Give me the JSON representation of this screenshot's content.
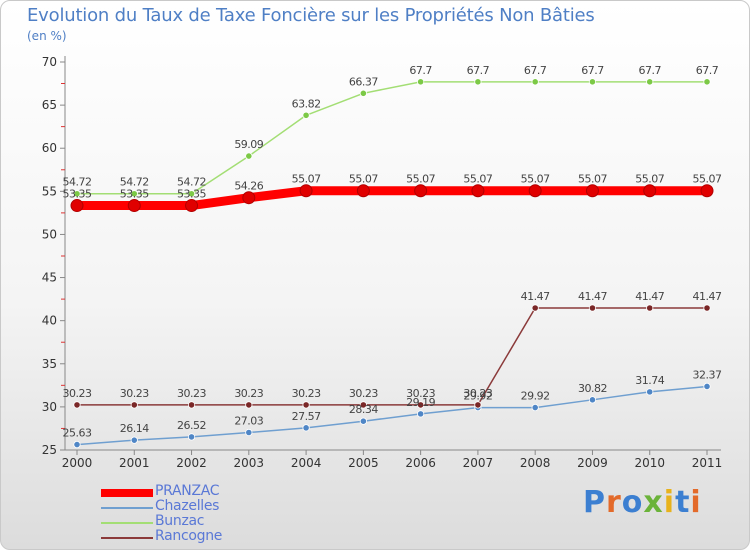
{
  "title": "Evolution du Taux de Taxe Foncière sur les Propriétés Non Bâties",
  "unit": "(en %)",
  "logo": {
    "text": "Proxiti",
    "letter_colors": [
      "#3c7fd1",
      "#e36a2a",
      "#3c7fd1",
      "#6bb33a",
      "#e8b21c",
      "#3c7fd1",
      "#e36a2a"
    ]
  },
  "chart_data": {
    "type": "line",
    "title": "Evolution du Taux de Taxe Foncière sur les Propriétés Non Bâties",
    "ylabel": "(en %)",
    "xlabel": "",
    "x": [
      "2000",
      "2001",
      "2002",
      "2003",
      "2004",
      "2005",
      "2006",
      "2007",
      "2008",
      "2009",
      "2010",
      "2011"
    ],
    "ylim": [
      25,
      70
    ],
    "yticks": [
      25,
      30,
      35,
      40,
      45,
      50,
      55,
      60,
      65,
      70
    ],
    "grid": false,
    "legend_position": "bottom-left",
    "series": [
      {
        "name": "PRANZAC",
        "color": "#ff0000",
        "marker": "#e00000",
        "weight": "bold",
        "values": [
          53.35,
          53.35,
          53.35,
          54.26,
          55.07,
          55.07,
          55.07,
          55.07,
          55.07,
          55.07,
          55.07,
          55.07
        ],
        "labels": [
          "53.35",
          "53.35",
          "53.35",
          "54.26",
          "55.07",
          "55.07",
          "55.07",
          "55.07",
          "55.07",
          "55.07",
          "55.07",
          "55.07"
        ]
      },
      {
        "name": "Chazelles",
        "color": "#6f9fd0",
        "marker": "#4f86c6",
        "weight": "thin",
        "values": [
          25.63,
          26.14,
          26.52,
          27.03,
          27.57,
          28.34,
          29.19,
          29.92,
          29.92,
          30.82,
          31.74,
          32.37
        ],
        "labels": [
          "25.63",
          "26.14",
          "26.52",
          "27.03",
          "27.57",
          "28.34",
          "29.19",
          "29.92",
          "29.92",
          "30.82",
          "31.74",
          "32.37"
        ]
      },
      {
        "name": "Bunzac",
        "color": "#a3de74",
        "marker": "#7cc946",
        "weight": "thin",
        "values": [
          54.72,
          54.72,
          54.72,
          59.09,
          63.82,
          66.37,
          67.7,
          67.7,
          67.7,
          67.7,
          67.7,
          67.7
        ],
        "labels": [
          "54.72",
          "54.72",
          "54.72",
          "59.09",
          "63.82",
          "66.37",
          "67.7",
          "67.7",
          "67.7",
          "67.7",
          "67.7",
          "67.7"
        ]
      },
      {
        "name": "Rancogne",
        "color": "#8b3a3a",
        "marker": "#7a2727",
        "weight": "thin",
        "values": [
          30.23,
          30.23,
          30.23,
          30.23,
          30.23,
          30.23,
          30.23,
          30.23,
          41.47,
          41.47,
          41.47,
          41.47
        ],
        "labels": [
          "30.23",
          "30.23",
          "30.23",
          "30.23",
          "30.23",
          "30.23",
          "30.23",
          "30.23",
          "41.47",
          "41.47",
          "41.47",
          "41.47"
        ]
      }
    ]
  }
}
